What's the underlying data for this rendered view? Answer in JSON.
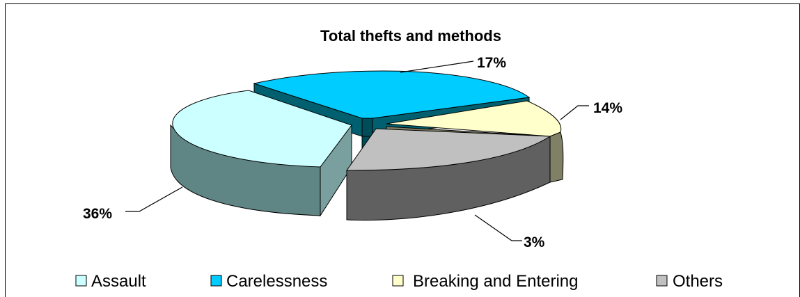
{
  "chart_data": {
    "type": "pie",
    "title": "Total thefts and methods",
    "categories": [
      "Assault",
      "Carelessness",
      "Breaking and Entering",
      "Others"
    ],
    "values": [
      36,
      17,
      14,
      3
    ],
    "data_labels": [
      "36%",
      "17%",
      "14%",
      "3%"
    ],
    "colors": {
      "Assault": "#ccffff",
      "Carelessness": "#00ccff",
      "Breaking and Entering": "#ffffcc",
      "Others": "#c0c0c0"
    },
    "exploded": true,
    "three_d": true,
    "legend_position": "bottom"
  }
}
